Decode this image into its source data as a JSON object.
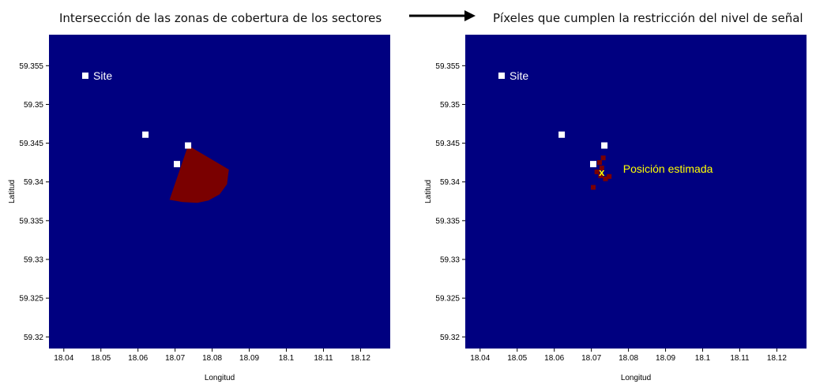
{
  "captions": {
    "left": "Intersección de las zonas de cobertura de los sectores",
    "right": "Píxeles que cumplen la restricción del nivel de señal"
  },
  "colors": {
    "background": "#000080",
    "coverage": "#7a0000",
    "marker": "#ffffff",
    "estimate": "#ffff00",
    "axes_text": "#000000"
  },
  "chart_data": [
    {
      "type": "heatmap",
      "title": "",
      "xlabel": "Longitud",
      "ylabel": "Latitud",
      "xlim": [
        18.036,
        18.128
      ],
      "ylim": [
        59.3185,
        59.359
      ],
      "x_ticks": [
        18.04,
        18.05,
        18.06,
        18.07,
        18.08,
        18.09,
        18.1,
        18.11,
        18.12
      ],
      "x_tick_labels": [
        "18.04",
        "18.05",
        "18.06",
        "18.07",
        "18.08",
        "18.09",
        "18.1",
        "18.11",
        "18.12"
      ],
      "y_ticks": [
        59.32,
        59.325,
        59.33,
        59.335,
        59.34,
        59.345,
        59.35,
        59.355
      ],
      "y_tick_labels": [
        "59.32",
        "59.325",
        "59.33",
        "59.335",
        "59.34",
        "59.345",
        "59.35",
        "59.355"
      ],
      "sites": [
        [
          18.062,
          59.3461
        ],
        [
          18.0735,
          59.3447
        ],
        [
          18.0705,
          59.3423
        ]
      ],
      "legend": {
        "label": "Site",
        "position": "top-left"
      },
      "coverage_region": [
        [
          18.0735,
          59.3447
        ],
        [
          18.0845,
          59.3416
        ],
        [
          18.084,
          59.3397
        ],
        [
          18.082,
          59.3384
        ],
        [
          18.079,
          59.3376
        ],
        [
          18.076,
          59.3373
        ],
        [
          18.072,
          59.3374
        ],
        [
          18.0685,
          59.3377
        ]
      ]
    },
    {
      "type": "heatmap",
      "title": "",
      "xlabel": "Longitud",
      "ylabel": "Latitud",
      "xlim": [
        18.036,
        18.128
      ],
      "ylim": [
        59.3185,
        59.359
      ],
      "x_ticks": [
        18.04,
        18.05,
        18.06,
        18.07,
        18.08,
        18.09,
        18.1,
        18.11,
        18.12
      ],
      "x_tick_labels": [
        "18.04",
        "18.05",
        "18.06",
        "18.07",
        "18.08",
        "18.09",
        "18.1",
        "18.11",
        "18.12"
      ],
      "y_ticks": [
        59.32,
        59.325,
        59.33,
        59.335,
        59.34,
        59.345,
        59.35,
        59.355
      ],
      "y_tick_labels": [
        "59.32",
        "59.325",
        "59.33",
        "59.335",
        "59.34",
        "59.345",
        "59.35",
        "59.355"
      ],
      "sites": [
        [
          18.062,
          59.3461
        ],
        [
          18.0735,
          59.3447
        ],
        [
          18.0705,
          59.3423
        ]
      ],
      "legend": {
        "label": "Site",
        "position": "top-left"
      },
      "valid_pixels": [
        [
          18.0715,
          59.3413
        ],
        [
          18.0725,
          59.3408
        ],
        [
          18.0738,
          59.3404
        ],
        [
          18.0748,
          59.3407
        ],
        [
          18.0732,
          59.3431
        ],
        [
          18.0722,
          59.3425
        ],
        [
          18.0728,
          59.3418
        ],
        [
          18.0705,
          59.3393
        ]
      ],
      "estimate": {
        "x": 18.0728,
        "y": 59.3413,
        "marker": "x",
        "label": "Posición estimada"
      }
    }
  ]
}
